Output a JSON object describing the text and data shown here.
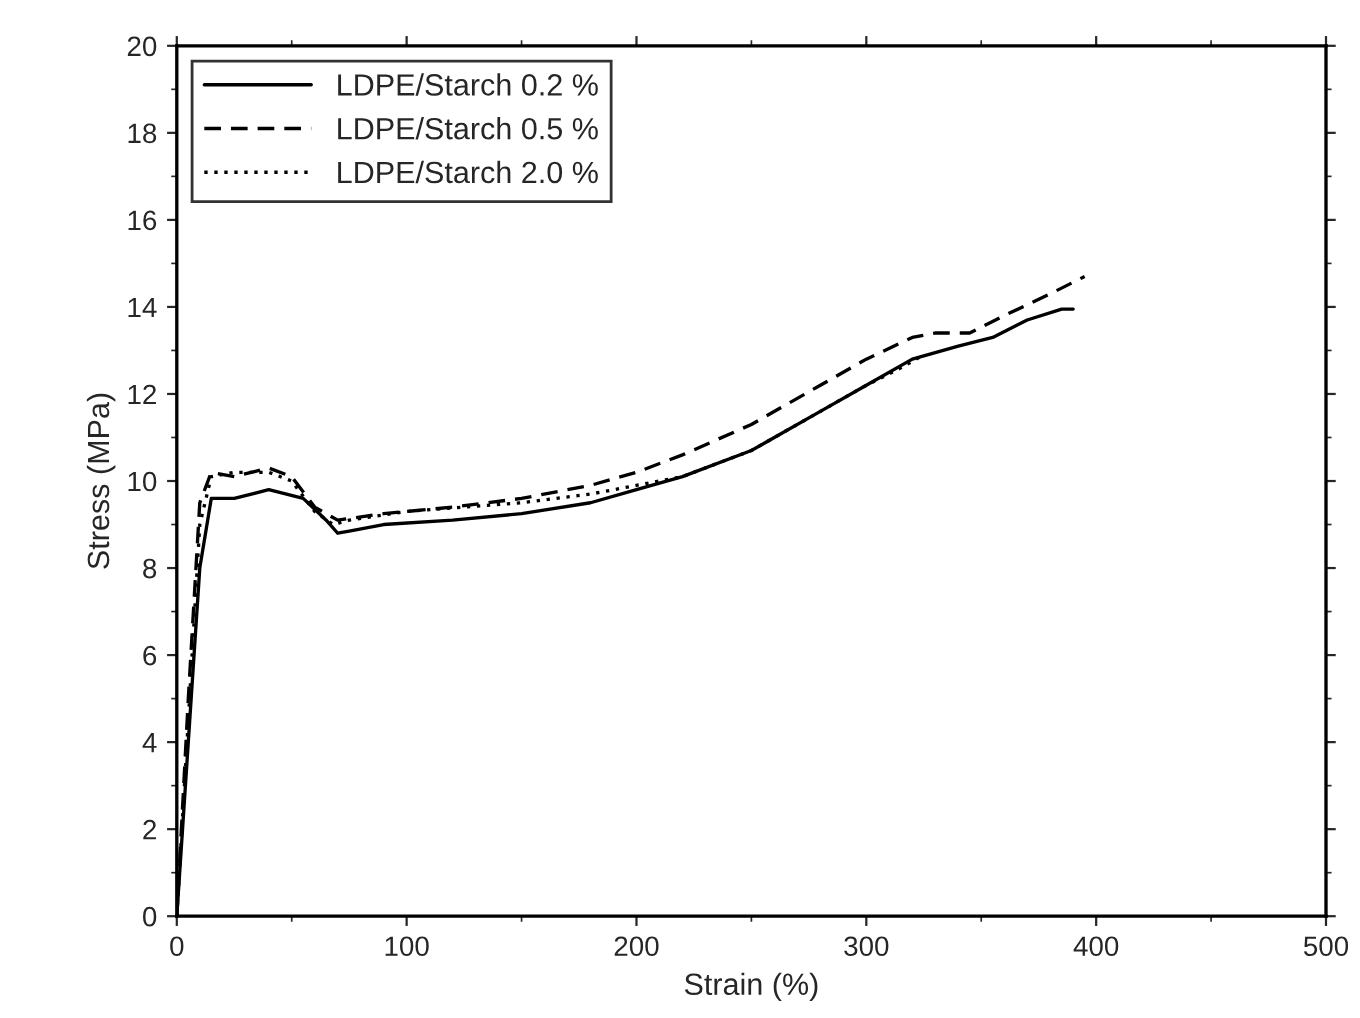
{
  "chart_data": {
    "type": "line",
    "xlabel": "Strain (%)",
    "ylabel": "Stress (MPa)",
    "xlim": [
      0,
      500
    ],
    "xticks": [
      0,
      100,
      200,
      300,
      400,
      500
    ],
    "ylim": [
      0,
      20
    ],
    "yticks": [
      0,
      2,
      4,
      6,
      8,
      10,
      12,
      14,
      16,
      18,
      20
    ],
    "grid": false,
    "legend": "top left",
    "series": [
      {
        "name": "LDPE/Starch 0.2 %",
        "color": "#000000",
        "line_style": "solid",
        "x": [
          0,
          5,
          10,
          15,
          25,
          40,
          55,
          65,
          70,
          75,
          90,
          120,
          150,
          180,
          200,
          220,
          250,
          280,
          300,
          320,
          340,
          355,
          370,
          385,
          390
        ],
        "values": [
          0,
          4,
          8,
          9.6,
          9.6,
          9.8,
          9.6,
          9.1,
          8.8,
          8.85,
          9.0,
          9.1,
          9.25,
          9.5,
          9.8,
          10.1,
          10.7,
          11.6,
          12.2,
          12.8,
          13.1,
          13.3,
          13.7,
          13.95,
          13.95
        ]
      },
      {
        "name": "LDPE/Starch 0.5 %",
        "color": "#000000",
        "line_style": "dashed",
        "x": [
          0,
          5,
          10,
          15,
          25,
          40,
          50,
          60,
          70,
          90,
          120,
          150,
          180,
          200,
          220,
          250,
          280,
          300,
          320,
          330,
          345,
          360,
          380,
          395
        ],
        "values": [
          0,
          5,
          9.5,
          10.2,
          10.1,
          10.3,
          10.1,
          9.4,
          9.1,
          9.25,
          9.4,
          9.6,
          9.9,
          10.2,
          10.6,
          11.3,
          12.2,
          12.8,
          13.3,
          13.4,
          13.4,
          13.8,
          14.3,
          14.7
        ]
      },
      {
        "name": "LDPE/Starch 2.0 %",
        "color": "#000000",
        "line_style": "dotted",
        "x": [
          0,
          5,
          10,
          15,
          25,
          40,
          50,
          60,
          68,
          75,
          100,
          150,
          180,
          200,
          220,
          250,
          280,
          300,
          315,
          325
        ],
        "values": [
          0,
          4.5,
          9,
          10.1,
          10.2,
          10.2,
          10.0,
          9.3,
          9.0,
          9.1,
          9.3,
          9.5,
          9.7,
          9.9,
          10.1,
          10.7,
          11.6,
          12.2,
          12.6,
          12.9
        ]
      }
    ]
  }
}
